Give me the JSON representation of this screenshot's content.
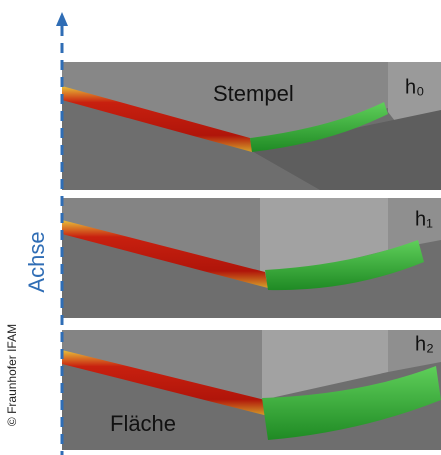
{
  "labels": {
    "punch": "Stempel",
    "heights": [
      "h₀",
      "h₁",
      "h₂"
    ],
    "axis": "Achse",
    "surface": "Fläche",
    "credit": "© Fraunhofer IFAM"
  }
}
